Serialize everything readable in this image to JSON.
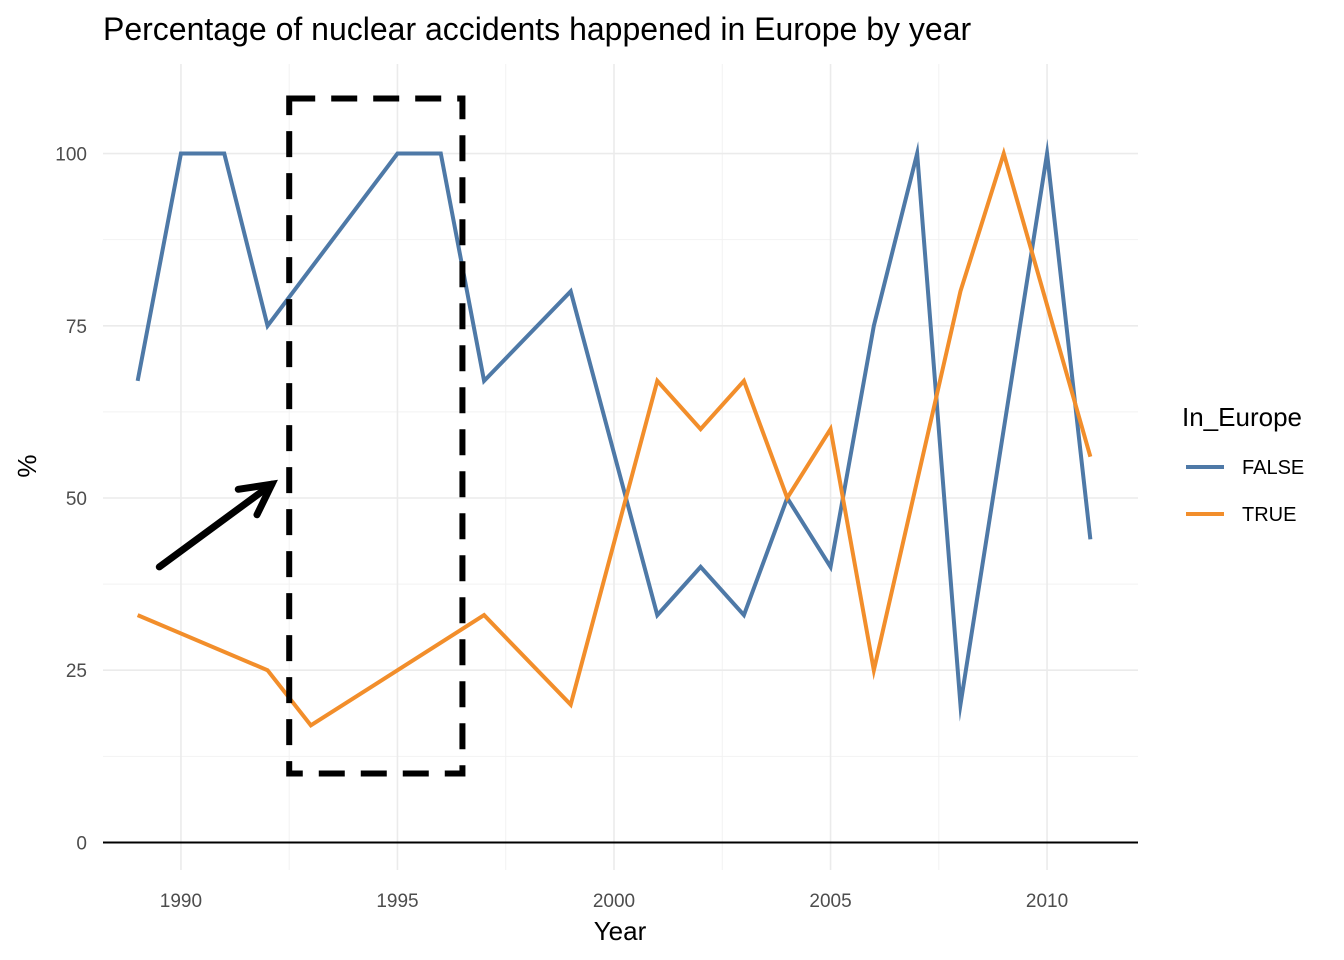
{
  "chart_data": {
    "type": "line",
    "title": "Percentage of nuclear accidents happened in Europe by year",
    "xlabel": "Year",
    "ylabel": "%",
    "xlim": [
      1988.2,
      2012.1
    ],
    "ylim": [
      -4,
      113
    ],
    "x_ticks": [
      1990,
      1995,
      2000,
      2005,
      2010
    ],
    "y_ticks": [
      0,
      25,
      50,
      75,
      100
    ],
    "grid": true,
    "legend": {
      "title": "In_Europe",
      "placement": "right"
    },
    "series": [
      {
        "name": "FALSE",
        "color": "#4e79a7",
        "x": [
          1989,
          1990,
          1991,
          1992,
          1995,
          1996,
          1997,
          1999,
          2001,
          2002,
          2003,
          2004,
          2005,
          2006,
          2007,
          2008,
          2010,
          2011
        ],
        "values": [
          67,
          100,
          100,
          75,
          100,
          100,
          67,
          80,
          33,
          40,
          33,
          50,
          40,
          75,
          100,
          20,
          100,
          44
        ]
      },
      {
        "name": "TRUE",
        "color": "#f28e2b",
        "x": [
          1989,
          1992,
          1993,
          1997,
          1999,
          2001,
          2002,
          2003,
          2004,
          2005,
          2006,
          2008,
          2009,
          2011
        ],
        "values": [
          33,
          25,
          17,
          33,
          20,
          67,
          60,
          67,
          50,
          60,
          25,
          80,
          100,
          56
        ]
      }
    ],
    "annotations": [
      {
        "type": "arrow",
        "x": [
          1989.5,
          1992.1
        ],
        "y": [
          40,
          52
        ],
        "color": "#000000"
      },
      {
        "type": "dashed-rectangle",
        "x": [
          1992.5,
          1996.5
        ],
        "y": [
          10,
          108
        ],
        "color": "#000000"
      }
    ]
  }
}
